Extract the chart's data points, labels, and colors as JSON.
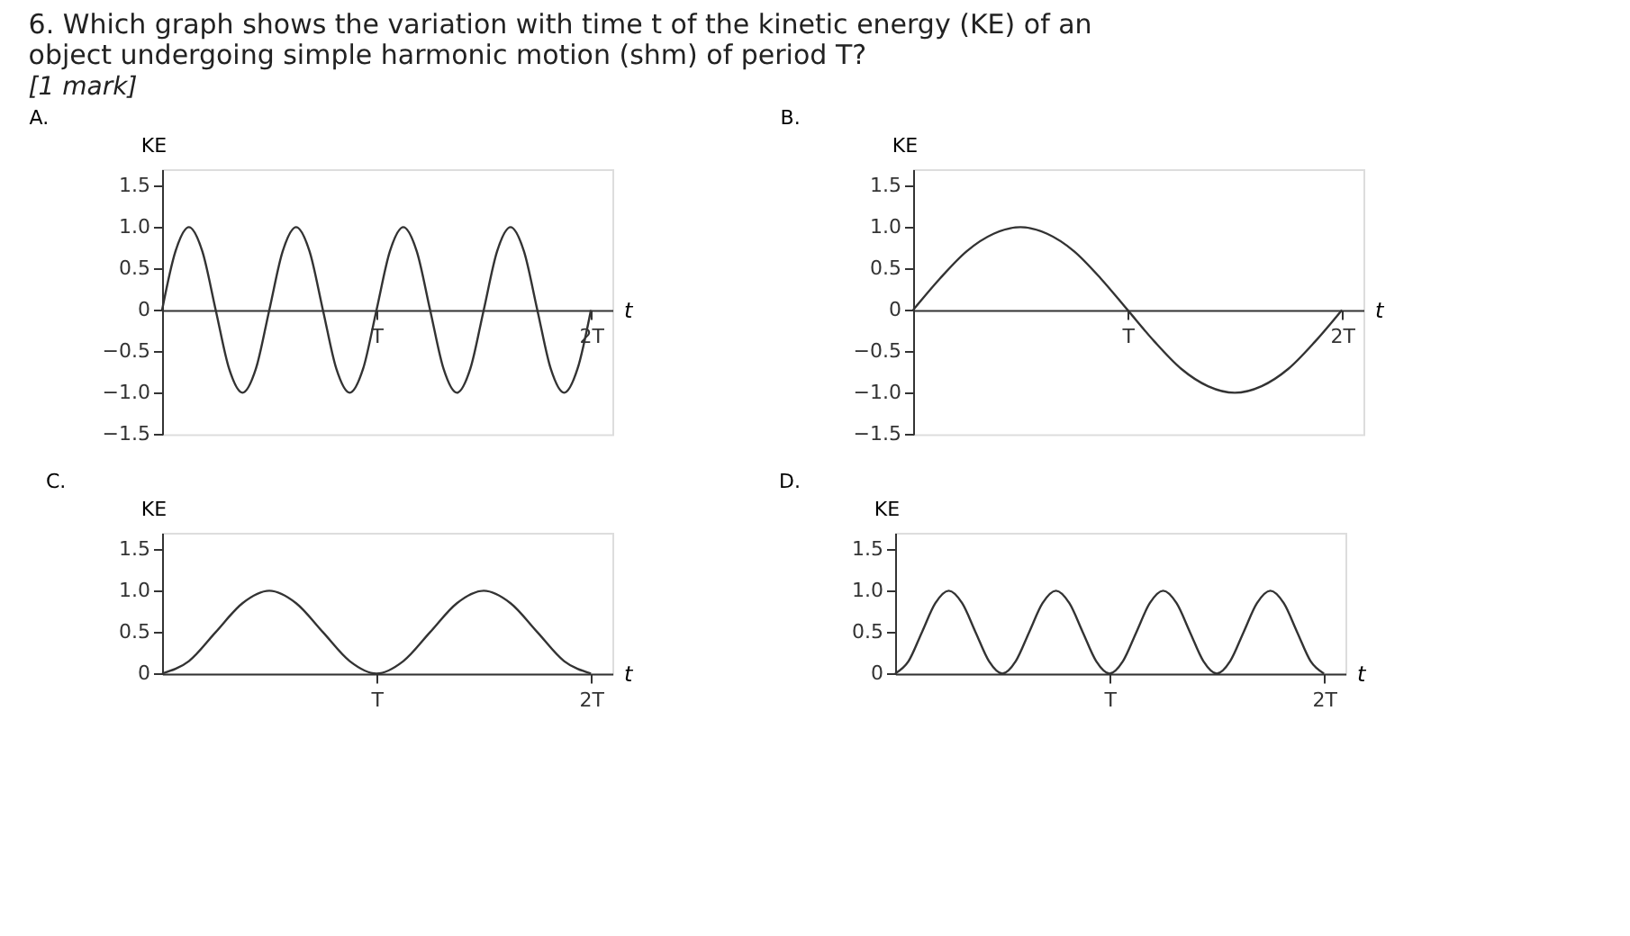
{
  "chart_data": [
    {
      "type": "line",
      "title": "A.",
      "annotations": [
        "6. Which graph shows the variation with time t of the kinetic energy (KE) of an object undergoing simple harmonic motion (shm) of period T?",
        "[1 mark]"
      ],
      "xlabel": "t",
      "ylabel": "KE",
      "grid": false,
      "marker": "none",
      "line_style": "solid",
      "ylim": [
        -1.5,
        1.7
      ],
      "yticks": [
        {
          "value": -1.5,
          "label": "−1.5"
        },
        {
          "value": -1,
          "label": "−1.0"
        },
        {
          "value": -0.5,
          "label": "−0.5"
        },
        0,
        0.5,
        {
          "value": 1,
          "label": "1.0"
        },
        1.5
      ],
      "categories": [
        null,
        null,
        null,
        null,
        null,
        null,
        null,
        null,
        null,
        null,
        null,
        null,
        null,
        null,
        null,
        null,
        "T",
        null,
        null,
        null,
        null,
        null,
        null,
        null,
        null,
        null,
        null,
        null,
        null,
        null,
        null,
        null,
        "2T"
      ],
      "series": [
        {
          "color": "#333333",
          "values": [
            0,
            0.71,
            1,
            0.71,
            0,
            -0.71,
            -1,
            -0.71,
            0,
            0.71,
            1,
            0.71,
            0,
            -0.71,
            -1,
            -0.71,
            0,
            0.71,
            1,
            0.71,
            0,
            -0.71,
            -1,
            -0.71,
            0,
            0.71,
            1,
            0.71,
            0,
            -0.71,
            -1,
            -0.71,
            0
          ]
        }
      ]
    },
    {
      "type": "line",
      "title": "B.",
      "xlabel": "t",
      "ylabel": "KE",
      "grid": false,
      "marker": "none",
      "line_style": "solid",
      "ylim": [
        -1.5,
        1.7
      ],
      "yticks": [
        {
          "value": -1.5,
          "label": "−1.5"
        },
        {
          "value": -1,
          "label": "−1.0"
        },
        {
          "value": -0.5,
          "label": "−0.5"
        },
        0,
        0.5,
        {
          "value": 1,
          "label": "1.0"
        },
        1.5
      ],
      "categories": [
        null,
        null,
        null,
        null,
        null,
        null,
        null,
        null,
        "T",
        null,
        null,
        null,
        null,
        null,
        null,
        null,
        "2T"
      ],
      "series": [
        {
          "color": "#333333",
          "values": [
            0,
            0.38,
            0.71,
            0.92,
            1,
            0.92,
            0.71,
            0.38,
            0,
            -0.38,
            -0.71,
            -0.92,
            -1,
            -0.92,
            -0.71,
            -0.38,
            0
          ]
        }
      ]
    },
    {
      "type": "line",
      "title": "C.",
      "xlabel": "t",
      "ylabel": "KE",
      "grid": false,
      "marker": "none",
      "line_style": "solid",
      "ylim": [
        0,
        1.7
      ],
      "yticks": [
        0,
        0.5,
        {
          "value": 1,
          "label": "1.0"
        },
        1.5
      ],
      "categories": [
        null,
        null,
        null,
        null,
        null,
        null,
        null,
        null,
        "T",
        null,
        null,
        null,
        null,
        null,
        null,
        null,
        "2T"
      ],
      "series": [
        {
          "color": "#333333",
          "values": [
            0,
            0.15,
            0.5,
            0.85,
            1,
            0.85,
            0.5,
            0.15,
            0,
            0.15,
            0.5,
            0.85,
            1,
            0.85,
            0.5,
            0.15,
            0
          ]
        }
      ]
    },
    {
      "type": "line",
      "title": "D.",
      "xlabel": "t",
      "ylabel": "KE",
      "grid": false,
      "marker": "none",
      "line_style": "solid",
      "ylim": [
        0,
        1.7
      ],
      "yticks": [
        0,
        0.5,
        {
          "value": 1,
          "label": "1.0"
        },
        1.5
      ],
      "categories": [
        null,
        null,
        null,
        null,
        null,
        null,
        null,
        null,
        null,
        null,
        null,
        null,
        null,
        null,
        null,
        null,
        "T",
        null,
        null,
        null,
        null,
        null,
        null,
        null,
        null,
        null,
        null,
        null,
        null,
        null,
        null,
        null,
        "2T"
      ],
      "series": [
        {
          "color": "#333333",
          "values": [
            0,
            0.15,
            0.5,
            0.85,
            1,
            0.85,
            0.5,
            0.15,
            0,
            0.15,
            0.5,
            0.85,
            1,
            0.85,
            0.5,
            0.15,
            0,
            0.15,
            0.5,
            0.85,
            1,
            0.85,
            0.5,
            0.15,
            0,
            0.15,
            0.5,
            0.85,
            1,
            0.85,
            0.5,
            0.15,
            0
          ]
        }
      ]
    }
  ]
}
